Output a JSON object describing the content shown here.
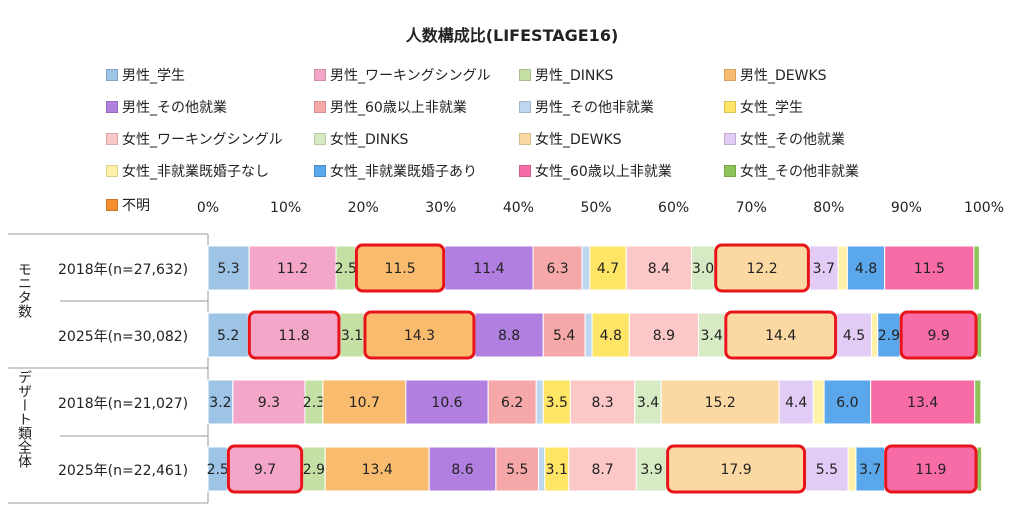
{
  "chart_data": {
    "type": "bar",
    "stacked": "percent",
    "orientation": "horizontal",
    "title": "人数構成比(LIFESTAGE16)",
    "xlim": [
      0,
      100
    ],
    "ticks": [
      "0%",
      "10%",
      "20%",
      "30%",
      "40%",
      "50%",
      "60%",
      "70%",
      "80%",
      "90%",
      "100%"
    ],
    "legend_position": "top",
    "groups": [
      {
        "label": "モニタ数",
        "rows": [
          0,
          1
        ]
      },
      {
        "label": "デザート類全体",
        "rows": [
          2,
          3
        ]
      }
    ],
    "categories": [
      "2018年(n=27,632)",
      "2025年(n=30,082)",
      "2018年(n=21,027)",
      "2025年(n=22,461)"
    ],
    "series": [
      {
        "name": "男性_学生",
        "color": "#9DC3E6",
        "values": [
          5.3,
          5.2,
          3.2,
          2.5
        ],
        "labels": [
          "5.3",
          "5.2",
          "3.2",
          "2.5"
        ]
      },
      {
        "name": "男性_ワーキングシングル",
        "color": "#F4A6C8",
        "values": [
          11.2,
          11.8,
          9.3,
          9.7
        ],
        "labels": [
          "11.2",
          "11.8",
          "9.3",
          "9.7"
        ]
      },
      {
        "name": "男性_DINKS",
        "color": "#C5E0A5",
        "values": [
          2.5,
          3.1,
          2.3,
          2.9
        ],
        "labels": [
          "2.5",
          "3.1",
          "2.3",
          "2.9"
        ]
      },
      {
        "name": "男性_DEWKS",
        "color": "#F9BC6E",
        "values": [
          11.5,
          14.3,
          10.7,
          13.4
        ],
        "labels": [
          "11.5",
          "14.3",
          "10.7",
          "13.4"
        ]
      },
      {
        "name": "男性_その他就業",
        "color": "#B07FE0",
        "values": [
          11.4,
          8.8,
          10.6,
          8.6
        ],
        "labels": [
          "11.4",
          "8.8",
          "10.6",
          "8.6"
        ]
      },
      {
        "name": "男性_60歳以上非就業",
        "color": "#F6A8A8",
        "values": [
          6.3,
          5.4,
          6.2,
          5.5
        ],
        "labels": [
          "6.3",
          "5.4",
          "6.2",
          "5.5"
        ]
      },
      {
        "name": "男性_その他非就業",
        "color": "#BDD7EE",
        "values": [
          1.0,
          0.9,
          0.9,
          0.8
        ],
        "labels": [
          "",
          "",
          "",
          ""
        ]
      },
      {
        "name": "女性_学生",
        "color": "#FFE566",
        "values": [
          4.7,
          4.8,
          3.5,
          3.1
        ],
        "labels": [
          "4.7",
          "4.8",
          "3.5",
          "3.1"
        ]
      },
      {
        "name": "女性_ワーキングシングル",
        "color": "#FBC7C7",
        "values": [
          8.4,
          8.9,
          8.3,
          8.7
        ],
        "labels": [
          "8.4",
          "8.9",
          "8.3",
          "8.7"
        ]
      },
      {
        "name": "女性_DINKS",
        "color": "#D6EBC4",
        "values": [
          3.0,
          3.4,
          3.4,
          3.9
        ],
        "labels": [
          "3.0",
          "3.4",
          "3.4",
          "3.9"
        ]
      },
      {
        "name": "女性_DEWKS",
        "color": "#FCD9A3",
        "values": [
          12.2,
          14.4,
          15.2,
          17.9
        ],
        "labels": [
          "12.2",
          "14.4",
          "15.2",
          "17.9"
        ]
      },
      {
        "name": "女性_その他就業",
        "color": "#E2CCF5",
        "values": [
          3.7,
          4.5,
          4.4,
          5.5
        ],
        "labels": [
          "3.7",
          "4.5",
          "4.4",
          "5.5"
        ]
      },
      {
        "name": "女性_非就業既婚子なし",
        "color": "#FFF2A8",
        "values": [
          1.2,
          0.8,
          1.4,
          1.0
        ],
        "labels": [
          "",
          "",
          "",
          ""
        ]
      },
      {
        "name": "女性_非就業既婚子あり",
        "color": "#5BA7EB",
        "values": [
          4.8,
          2.9,
          6.0,
          3.7
        ],
        "labels": [
          "4.8",
          "2.9",
          "6.0",
          "3.7"
        ]
      },
      {
        "name": "女性_60歳以上非就業",
        "color": "#F76CA6",
        "values": [
          11.5,
          9.9,
          13.4,
          11.9
        ],
        "labels": [
          "11.5",
          "9.9",
          "13.4",
          "11.9"
        ]
      },
      {
        "name": "女性_その他非就業",
        "color": "#8CC45A",
        "values": [
          0.7,
          0.6,
          0.8,
          0.6
        ],
        "labels": [
          "",
          "",
          "",
          ""
        ]
      },
      {
        "name": "不明",
        "color": "#F28E2B",
        "values": [
          0.0,
          0.0,
          0.0,
          0.0
        ],
        "labels": [
          "",
          "",
          "",
          ""
        ]
      }
    ],
    "highlights": [
      {
        "row": 0,
        "series": 3
      },
      {
        "row": 0,
        "series": 10
      },
      {
        "row": 1,
        "series": 1
      },
      {
        "row": 1,
        "series": 3
      },
      {
        "row": 1,
        "series": 10
      },
      {
        "row": 1,
        "series": 14
      },
      {
        "row": 3,
        "series": 1
      },
      {
        "row": 3,
        "series": 10
      },
      {
        "row": 3,
        "series": 14
      }
    ],
    "highlight_color": "#E8141B"
  }
}
